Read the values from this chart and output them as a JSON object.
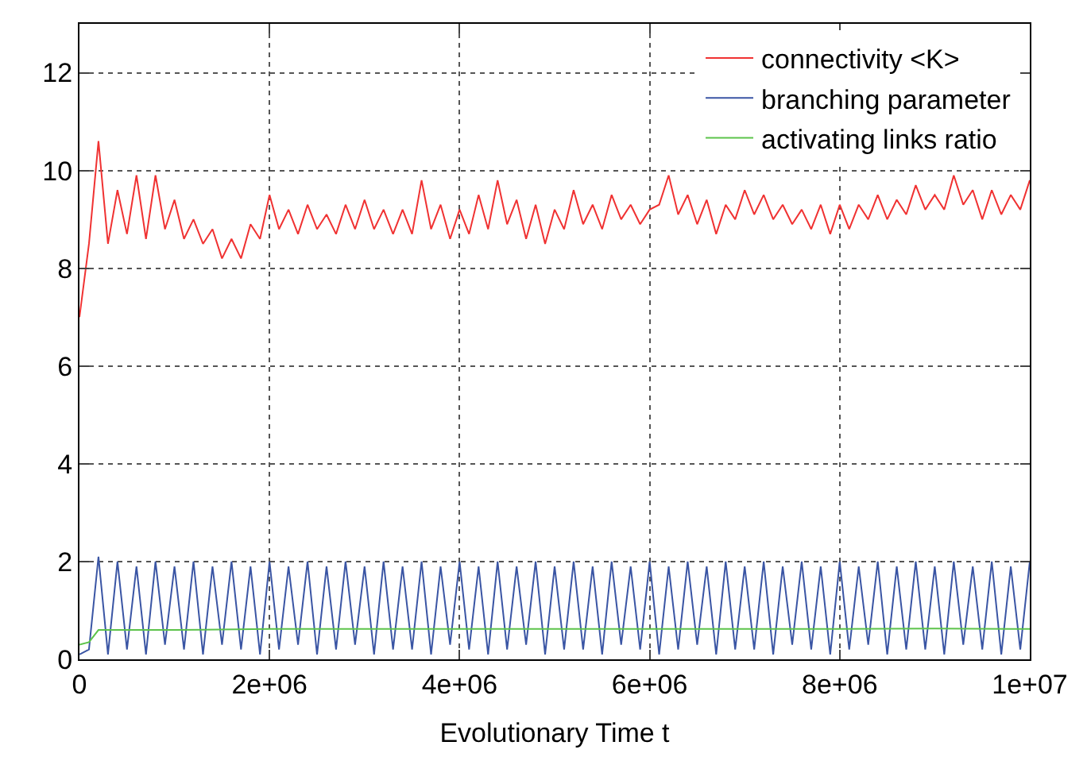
{
  "chart_data": {
    "type": "line",
    "xlabel": "Evolutionary Time t",
    "xlim": [
      0,
      10000000
    ],
    "ylim": [
      0,
      13
    ],
    "xticks": [
      0,
      {
        "value": 2000000,
        "label": "2e+06"
      },
      {
        "value": 4000000,
        "label": "4e+06"
      },
      {
        "value": 6000000,
        "label": "6e+06"
      },
      {
        "value": 8000000,
        "label": "8e+06"
      },
      {
        "value": 10000000,
        "label": "1e+07"
      }
    ],
    "yticks": [
      0,
      2,
      4,
      6,
      8,
      10,
      12
    ],
    "grid": true,
    "legend": "top right",
    "line_style": "solid",
    "marker": "none",
    "x": [
      0,
      100000,
      200000,
      300000,
      400000,
      500000,
      600000,
      700000,
      800000,
      900000,
      1000000,
      1100000,
      1200000,
      1300000,
      1400000,
      1500000,
      1600000,
      1700000,
      1800000,
      1900000,
      2000000,
      2100000,
      2200000,
      2300000,
      2400000,
      2500000,
      2600000,
      2700000,
      2800000,
      2900000,
      3000000,
      3100000,
      3200000,
      3300000,
      3400000,
      3500000,
      3600000,
      3700000,
      3800000,
      3900000,
      4000000,
      4100000,
      4200000,
      4300000,
      4400000,
      4500000,
      4600000,
      4700000,
      4800000,
      4900000,
      5000000,
      5100000,
      5200000,
      5300000,
      5400000,
      5500000,
      5600000,
      5700000,
      5800000,
      5900000,
      6000000,
      6100000,
      6200000,
      6300000,
      6400000,
      6500000,
      6600000,
      6700000,
      6800000,
      6900000,
      7000000,
      7100000,
      7200000,
      7300000,
      7400000,
      7500000,
      7600000,
      7700000,
      7800000,
      7900000,
      8000000,
      8100000,
      8200000,
      8300000,
      8400000,
      8500000,
      8600000,
      8700000,
      8800000,
      8900000,
      9000000,
      9100000,
      9200000,
      9300000,
      9400000,
      9500000,
      9600000,
      9700000,
      9800000,
      9900000,
      10000000
    ],
    "series": [
      {
        "name": "connectivity <K>",
        "color": "#f03232",
        "values": [
          7.0,
          8.5,
          10.6,
          8.5,
          9.6,
          8.7,
          9.9,
          8.6,
          9.9,
          8.8,
          9.4,
          8.6,
          9.0,
          8.5,
          8.8,
          8.2,
          8.6,
          8.2,
          8.9,
          8.6,
          9.5,
          8.8,
          9.2,
          8.7,
          9.3,
          8.8,
          9.1,
          8.7,
          9.3,
          8.8,
          9.4,
          8.8,
          9.2,
          8.7,
          9.2,
          8.7,
          9.8,
          8.8,
          9.3,
          8.6,
          9.2,
          8.7,
          9.5,
          8.8,
          9.8,
          8.9,
          9.4,
          8.6,
          9.3,
          8.5,
          9.2,
          8.8,
          9.6,
          8.9,
          9.3,
          8.8,
          9.5,
          9.0,
          9.3,
          8.9,
          9.2,
          9.3,
          9.9,
          9.1,
          9.5,
          8.9,
          9.4,
          8.7,
          9.3,
          9.0,
          9.6,
          9.1,
          9.5,
          9.0,
          9.3,
          8.9,
          9.2,
          8.8,
          9.3,
          8.7,
          9.3,
          8.8,
          9.3,
          9.0,
          9.5,
          9.0,
          9.4,
          9.1,
          9.7,
          9.2,
          9.5,
          9.2,
          9.9,
          9.3,
          9.6,
          9.0,
          9.6,
          9.1,
          9.5,
          9.2,
          9.8
        ]
      },
      {
        "name": "branching parameter",
        "color": "#3a55a4",
        "values": [
          0.1,
          0.2,
          2.1,
          0.1,
          2.0,
          0.2,
          1.9,
          0.1,
          2.0,
          0.3,
          1.9,
          0.2,
          2.0,
          0.1,
          1.9,
          0.3,
          2.0,
          0.2,
          1.9,
          0.1,
          2.0,
          0.2,
          1.9,
          0.3,
          2.0,
          0.1,
          1.9,
          0.2,
          2.0,
          0.3,
          1.9,
          0.1,
          2.0,
          0.2,
          1.9,
          0.2,
          2.0,
          0.1,
          1.9,
          0.3,
          2.0,
          0.2,
          1.9,
          0.1,
          2.0,
          0.2,
          1.9,
          0.3,
          2.0,
          0.1,
          1.9,
          0.2,
          2.0,
          0.2,
          1.9,
          0.1,
          2.0,
          0.3,
          1.9,
          0.2,
          2.0,
          0.1,
          1.9,
          0.2,
          2.0,
          0.3,
          1.9,
          0.1,
          2.0,
          0.2,
          1.9,
          0.2,
          2.0,
          0.1,
          1.9,
          0.3,
          2.0,
          0.2,
          1.9,
          0.1,
          2.0,
          0.2,
          1.9,
          0.3,
          2.0,
          0.1,
          1.9,
          0.2,
          2.0,
          0.2,
          1.9,
          0.1,
          2.0,
          0.3,
          1.9,
          0.2,
          2.0,
          0.1,
          1.9,
          0.2,
          2.0
        ]
      },
      {
        "name": "activating links ratio",
        "color": "#5cc34a",
        "x": [
          0,
          100000,
          200000,
          1000000,
          2000000,
          3000000,
          4000000,
          5000000,
          6000000,
          7000000,
          8000000,
          9000000,
          10000000
        ],
        "values": [
          0.3,
          0.35,
          0.6,
          0.6,
          0.62,
          0.62,
          0.62,
          0.62,
          0.62,
          0.62,
          0.62,
          0.63,
          0.62
        ]
      }
    ]
  }
}
